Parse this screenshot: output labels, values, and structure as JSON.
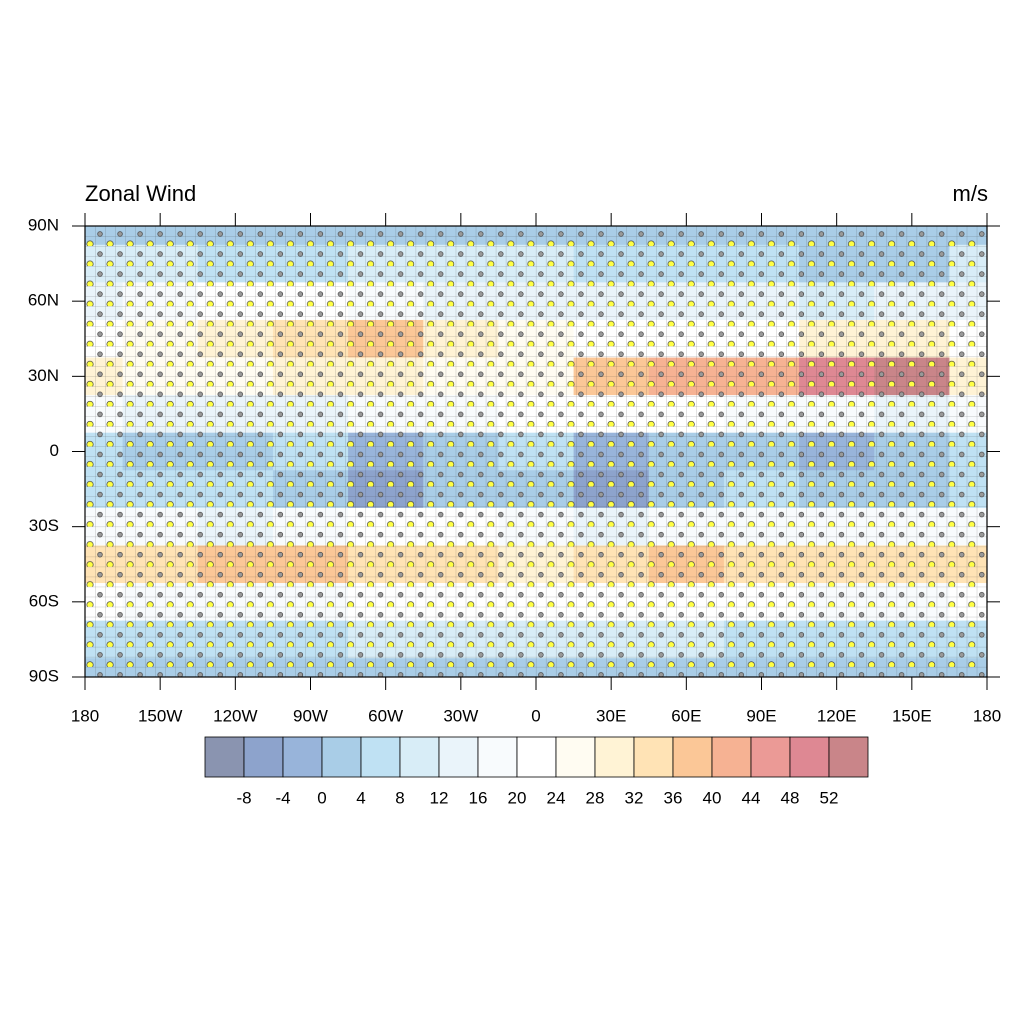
{
  "chart_data": {
    "type": "heatmap",
    "title": "Zonal Wind",
    "units": "m/s",
    "xlim": [
      -180,
      180
    ],
    "ylim": [
      -90,
      90
    ],
    "xticks": [
      {
        "value": -180,
        "label": "180"
      },
      {
        "value": -150,
        "label": "150W"
      },
      {
        "value": -120,
        "label": "120W"
      },
      {
        "value": -90,
        "label": "90W"
      },
      {
        "value": -60,
        "label": "60W"
      },
      {
        "value": -30,
        "label": "30W"
      },
      0,
      {
        "value": 30,
        "label": "30E"
      },
      {
        "value": 60,
        "label": "60E"
      },
      {
        "value": 90,
        "label": "90E"
      },
      {
        "value": 120,
        "label": "120E"
      },
      {
        "value": 150,
        "label": "150E"
      },
      {
        "value": 180,
        "label": "180"
      }
    ],
    "yticks": [
      {
        "value": 90,
        "label": "90N"
      },
      {
        "value": 60,
        "label": "60N"
      },
      {
        "value": 30,
        "label": "30N"
      },
      0,
      {
        "value": -30,
        "label": "30S"
      },
      {
        "value": -60,
        "label": "60S"
      },
      {
        "value": -90,
        "label": "90S"
      }
    ],
    "lons": [
      -180,
      -150,
      -120,
      -90,
      -60,
      -30,
      0,
      30,
      60,
      90,
      120,
      150,
      180
    ],
    "lats": [
      90,
      75,
      60,
      45,
      30,
      15,
      0,
      -15,
      -30,
      -45,
      -60,
      -75,
      -90
    ],
    "values": [
      [
        2,
        2,
        2,
        2,
        2,
        2,
        2,
        2,
        2,
        2,
        2,
        2,
        2
      ],
      [
        8,
        8,
        6,
        6,
        8,
        10,
        8,
        6,
        4,
        4,
        2,
        2,
        8
      ],
      [
        14,
        16,
        20,
        20,
        16,
        14,
        14,
        12,
        12,
        12,
        10,
        14,
        14
      ],
      [
        22,
        24,
        28,
        34,
        36,
        28,
        24,
        22,
        20,
        22,
        28,
        28,
        22
      ],
      [
        28,
        26,
        24,
        28,
        30,
        26,
        26,
        36,
        40,
        40,
        48,
        52,
        28
      ],
      [
        16,
        14,
        12,
        14,
        16,
        18,
        20,
        22,
        20,
        18,
        16,
        14,
        16
      ],
      [
        4,
        2,
        2,
        4,
        -2,
        2,
        4,
        -2,
        0,
        2,
        -2,
        2,
        4
      ],
      [
        4,
        4,
        4,
        2,
        -6,
        0,
        2,
        -6,
        2,
        4,
        0,
        2,
        4
      ],
      [
        16,
        16,
        14,
        16,
        20,
        20,
        16,
        14,
        16,
        18,
        16,
        16,
        16
      ],
      [
        32,
        34,
        36,
        36,
        34,
        32,
        30,
        34,
        36,
        34,
        32,
        32,
        32
      ],
      [
        20,
        18,
        16,
        18,
        20,
        20,
        22,
        22,
        20,
        20,
        18,
        18,
        20
      ],
      [
        6,
        6,
        4,
        6,
        8,
        10,
        10,
        8,
        8,
        6,
        6,
        6,
        6
      ],
      [
        2,
        2,
        2,
        2,
        2,
        2,
        2,
        2,
        2,
        2,
        2,
        2,
        2
      ]
    ],
    "levels": [
      -8,
      -4,
      0,
      4,
      8,
      12,
      16,
      20,
      24,
      28,
      32,
      36,
      40,
      44,
      48,
      52
    ],
    "colors": [
      "#8a94b0",
      "#8da3cc",
      "#98b4da",
      "#a9cde7",
      "#bfe1f3",
      "#d8edf7",
      "#eaf4fa",
      "#f8fbfd",
      "#ffffff",
      "#fffcf2",
      "#fff3d5",
      "#ffe3b5",
      "#fbc797",
      "#f6b293",
      "#eb9a96",
      "#de8893",
      "#c98589"
    ]
  }
}
